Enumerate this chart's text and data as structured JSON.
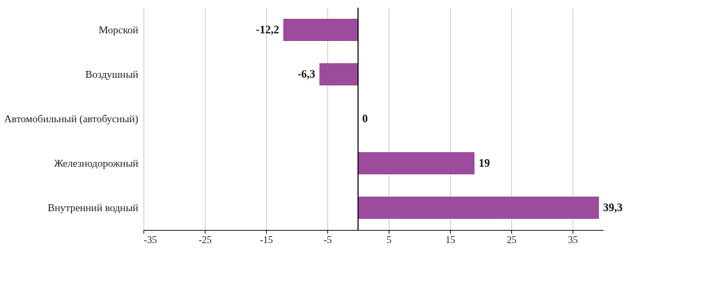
{
  "chart_data": {
    "type": "bar",
    "orientation": "horizontal",
    "categories": [
      "Морской",
      "Воздушный",
      "Автомобильный (автобусный)",
      "Железнодорожный",
      "Внутренний водный"
    ],
    "values": [
      -12.2,
      -6.3,
      0,
      19,
      39.3
    ],
    "value_labels": [
      "-12,2",
      "-6,3",
      "0",
      "19",
      "39,3"
    ],
    "color": "#9c4c9c",
    "xlim": [
      -35,
      40
    ],
    "xticks": [
      -35,
      -25,
      -15,
      -5,
      5,
      15,
      25,
      35
    ],
    "grid": "x",
    "ref_lines": [
      {
        "axis": "x",
        "value": 0,
        "color": "#000000"
      }
    ]
  }
}
